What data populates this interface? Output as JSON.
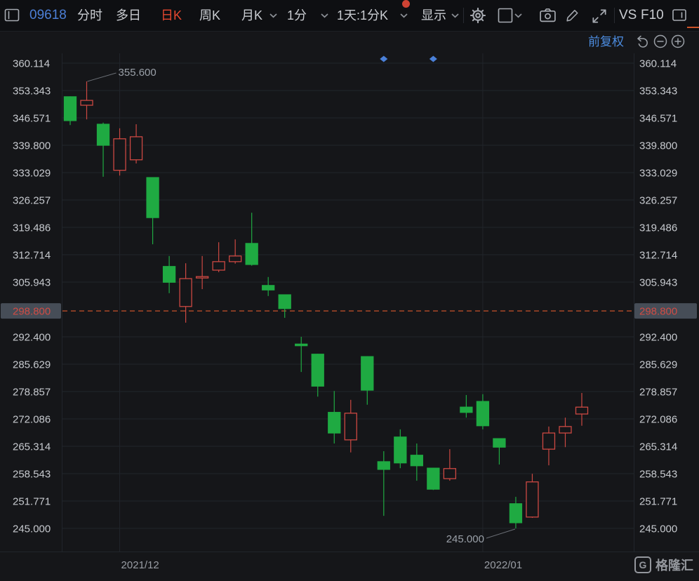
{
  "toolbar": {
    "stock_code": "09618",
    "tab_intraday": "分时",
    "tab_multiday": "多日",
    "tab_daily_k": "日K",
    "tab_weekly_k": "周K",
    "tab_monthly_k": "月K",
    "tab_1min": "1分",
    "period_selector": "1天:1分K",
    "display_label": "显示",
    "vs_label": "VS",
    "f10_label": "F10",
    "active_tab": "日K",
    "active_color": "#e5472f",
    "code_color": "#4c7fd6",
    "has_notification_dot": true
  },
  "subheader": {
    "adjust_label": "前复权",
    "adjust_color": "#4c8ce0"
  },
  "watermark": {
    "text": "格隆汇",
    "icon": "G"
  },
  "icons": {
    "toolbar": [
      "window-layout-icon",
      "chevron-down-icon",
      "gear-icon",
      "chart-style-icon",
      "camera-icon",
      "pencil-icon",
      "expand-icon",
      "info-panel-icon"
    ],
    "subheader": [
      "undo-icon",
      "zoom-out-icon",
      "zoom-in-icon"
    ],
    "chart": [
      "event-marker-diamond"
    ]
  },
  "chart_data": {
    "type": "candlestick",
    "symbol": "09618",
    "period_label": "日K",
    "adjust_mode": "前复权",
    "axis_range": {
      "top": 360.114,
      "bottom": 245.0
    },
    "y_axis_labels": [
      "360.114",
      "353.343",
      "346.571",
      "339.800",
      "333.029",
      "326.257",
      "319.486",
      "312.714",
      "305.943",
      "298.800",
      "292.400",
      "285.629",
      "278.857",
      "272.086",
      "265.314",
      "258.543",
      "251.771",
      "245.000"
    ],
    "reference_line": {
      "label": "298.800",
      "price": 298.8
    },
    "x_axis": [
      {
        "label": "2021/12",
        "candle_index": 3
      },
      {
        "label": "2022/01",
        "candle_index": 25
      }
    ],
    "price_annotations": [
      {
        "text": "355.600",
        "candle_index": 1,
        "anchor": "high"
      },
      {
        "text": "245.000",
        "candle_index": 27,
        "anchor": "low"
      }
    ],
    "event_markers": [
      {
        "candle_index": 19
      },
      {
        "candle_index": 22
      }
    ],
    "candles": [
      {
        "open": 351.8,
        "high": 351.9,
        "low": 344.8,
        "close": 345.9,
        "dir": "down"
      },
      {
        "open": 349.7,
        "high": 355.6,
        "low": 346.2,
        "close": 350.9,
        "dir": "up"
      },
      {
        "open": 345.0,
        "high": 345.4,
        "low": 332.0,
        "close": 339.8,
        "dir": "down"
      },
      {
        "open": 333.6,
        "high": 344.0,
        "low": 332.3,
        "close": 341.4,
        "dir": "up"
      },
      {
        "open": 336.2,
        "high": 345.0,
        "low": 335.3,
        "close": 341.9,
        "dir": "up"
      },
      {
        "open": 331.8,
        "high": 331.9,
        "low": 315.3,
        "close": 321.9,
        "dir": "down"
      },
      {
        "open": 309.8,
        "high": 312.4,
        "low": 303.2,
        "close": 305.9,
        "dir": "down"
      },
      {
        "open": 299.9,
        "high": 310.6,
        "low": 295.9,
        "close": 306.8,
        "dir": "up"
      },
      {
        "open": 307.0,
        "high": 312.4,
        "low": 304.2,
        "close": 307.3,
        "dir": "up"
      },
      {
        "open": 308.9,
        "high": 315.8,
        "low": 308.4,
        "close": 311.0,
        "dir": "up"
      },
      {
        "open": 311.0,
        "high": 316.5,
        "low": 310.5,
        "close": 312.4,
        "dir": "up"
      },
      {
        "open": 315.5,
        "high": 323.1,
        "low": 310.0,
        "close": 310.3,
        "dir": "down"
      },
      {
        "open": 305.1,
        "high": 307.2,
        "low": 302.5,
        "close": 304.0,
        "dir": "down"
      },
      {
        "open": 302.8,
        "high": 302.9,
        "low": 297.1,
        "close": 299.4,
        "dir": "down"
      },
      {
        "open": 290.6,
        "high": 292.4,
        "low": 283.7,
        "close": 290.2,
        "dir": "down"
      },
      {
        "open": 288.1,
        "high": 288.2,
        "low": 277.6,
        "close": 280.2,
        "dir": "down"
      },
      {
        "open": 273.7,
        "high": 279.0,
        "low": 266.0,
        "close": 268.6,
        "dir": "down"
      },
      {
        "open": 266.9,
        "high": 276.8,
        "low": 263.8,
        "close": 273.5,
        "dir": "up"
      },
      {
        "open": 287.5,
        "high": 287.6,
        "low": 275.6,
        "close": 279.2,
        "dir": "down"
      },
      {
        "open": 261.5,
        "high": 264.1,
        "low": 248.1,
        "close": 259.6,
        "dir": "down"
      },
      {
        "open": 267.6,
        "high": 269.5,
        "low": 259.9,
        "close": 261.2,
        "dir": "down"
      },
      {
        "open": 263.1,
        "high": 266.0,
        "low": 256.8,
        "close": 260.5,
        "dir": "down"
      },
      {
        "open": 259.9,
        "high": 260.0,
        "low": 254.5,
        "close": 254.7,
        "dir": "down"
      },
      {
        "open": 257.3,
        "high": 264.6,
        "low": 256.8,
        "close": 259.8,
        "dir": "up"
      },
      {
        "open": 275.0,
        "high": 278.0,
        "low": 272.4,
        "close": 273.7,
        "dir": "down"
      },
      {
        "open": 276.4,
        "high": 278.2,
        "low": 269.5,
        "close": 270.4,
        "dir": "down"
      },
      {
        "open": 267.2,
        "high": 267.3,
        "low": 260.8,
        "close": 265.1,
        "dir": "down"
      },
      {
        "open": 251.1,
        "high": 252.8,
        "low": 245.0,
        "close": 246.4,
        "dir": "down"
      },
      {
        "open": 247.8,
        "high": 258.5,
        "low": 247.6,
        "close": 256.5,
        "dir": "up"
      },
      {
        "open": 264.6,
        "high": 270.2,
        "low": 260.6,
        "close": 268.6,
        "dir": "up"
      },
      {
        "open": 268.6,
        "high": 272.4,
        "low": 265.1,
        "close": 270.2,
        "dir": "up"
      },
      {
        "open": 273.3,
        "high": 278.5,
        "low": 270.4,
        "close": 275.0,
        "dir": "up"
      }
    ],
    "colors": {
      "up": "#cc4842",
      "down": "#1faa42",
      "reference": "#c8512b",
      "grid": "#21252b",
      "axis_text": "#c6c9ce",
      "ref_text": "#d04c45",
      "ref_bg": "#464d57",
      "date_text": "#999da4",
      "annotation_text": "#9aa0a8",
      "annotation_line": "#6a6e75",
      "marker": "#4a80d8",
      "background": "#151619"
    }
  }
}
